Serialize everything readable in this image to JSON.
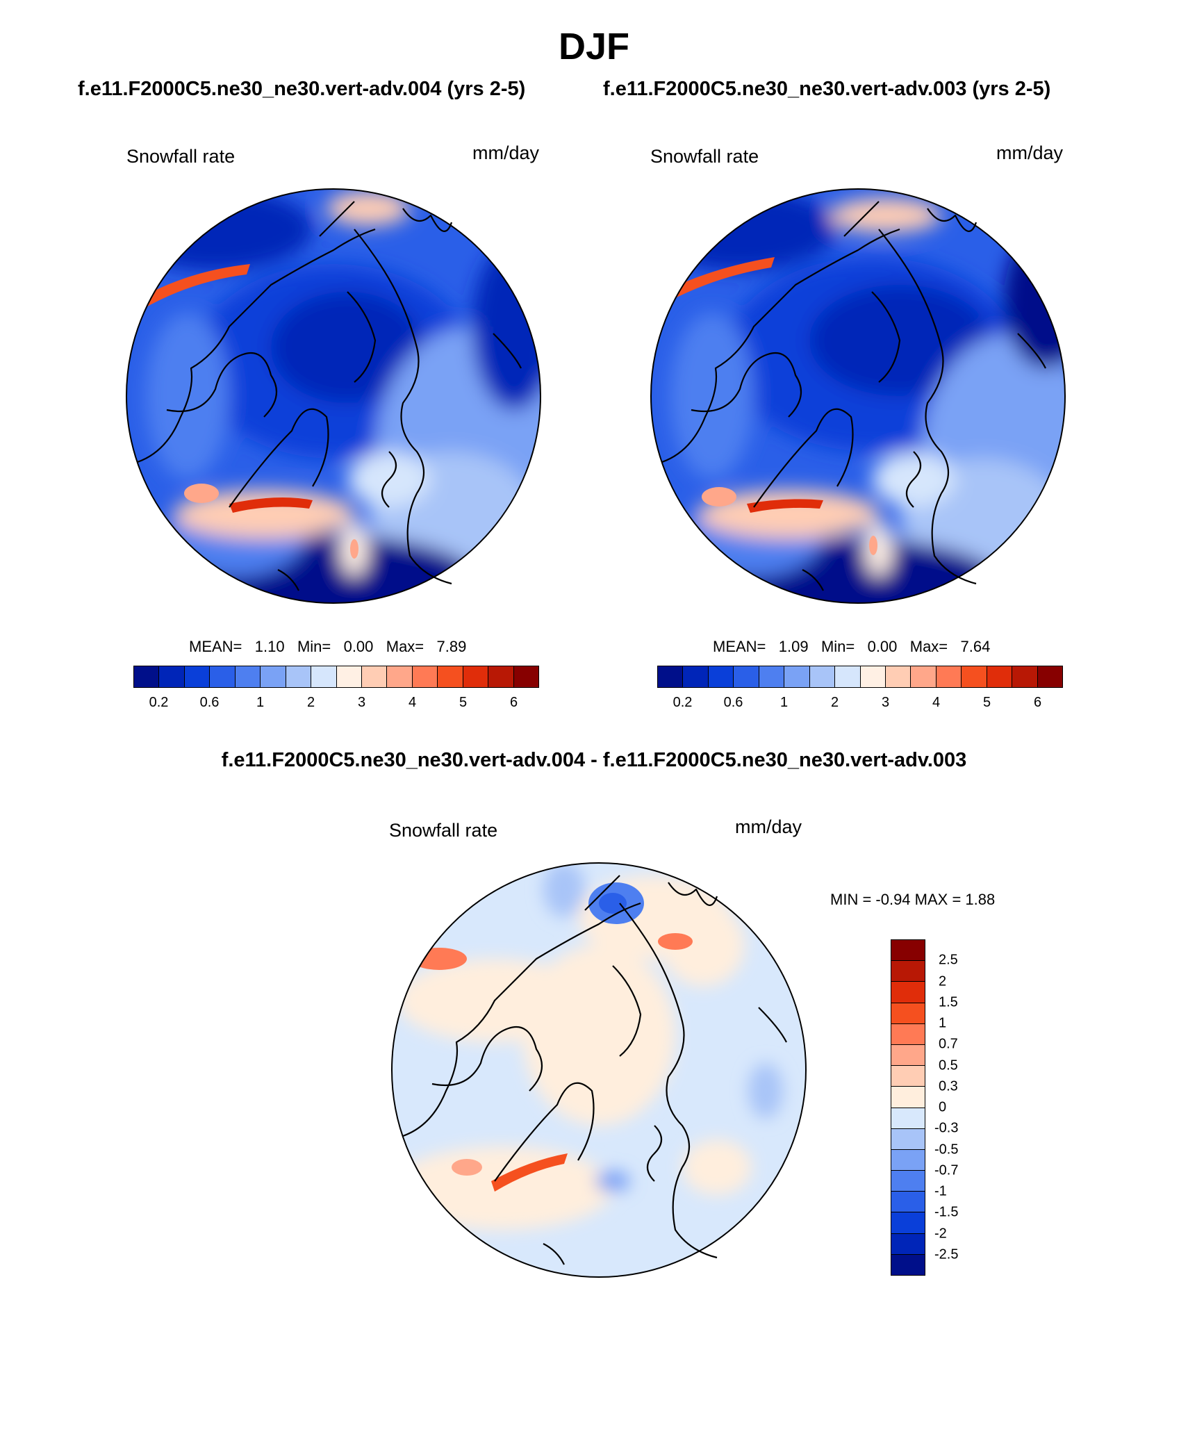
{
  "title": "DJF",
  "panels": {
    "left": {
      "case_title": "f.e11.F2000C5.ne30_ne30.vert-adv.004 (yrs 2-5)",
      "variable": "Snowfall rate",
      "units": "mm/day",
      "stats": {
        "mean_label": "MEAN=",
        "mean": "1.10",
        "min_label": "Min=",
        "min": "0.00",
        "max_label": "Max=",
        "max": "7.89"
      }
    },
    "right": {
      "case_title": "f.e11.F2000C5.ne30_ne30.vert-adv.003 (yrs 2-5)",
      "variable": "Snowfall rate",
      "units": "mm/day",
      "stats": {
        "mean_label": "MEAN=",
        "mean": "1.09",
        "min_label": "Min=",
        "min": "0.00",
        "max_label": "Max=",
        "max": "7.64"
      }
    },
    "diff": {
      "title": "f.e11.F2000C5.ne30_ne30.vert-adv.004 - f.e11.F2000C5.ne30_ne30.vert-adv.003",
      "variable": "Snowfall rate",
      "units": "mm/day",
      "minmax": "MIN =  -0.94 MAX =   1.88"
    }
  },
  "colorbar_main": {
    "colors": [
      "#000f8a",
      "#0025b8",
      "#0a3fd9",
      "#2a5fe8",
      "#4e7ff0",
      "#7aa2f5",
      "#a8c4f8",
      "#d6e6fc",
      "#fff0e4",
      "#ffcdb4",
      "#ffa78a",
      "#ff7a55",
      "#f5501f",
      "#e02d0a",
      "#b81805",
      "#870000"
    ],
    "labels": [
      "0.2",
      "0.6",
      "1",
      "2",
      "3",
      "4",
      "5",
      "6"
    ]
  },
  "colorbar_diff": {
    "colors": [
      "#870000",
      "#b81805",
      "#e02d0a",
      "#f5501f",
      "#ff7a55",
      "#ffa78a",
      "#ffcdb4",
      "#ffeedd",
      "#d8e8fc",
      "#a8c4f8",
      "#7aa2f5",
      "#4e7ff0",
      "#2a5fe8",
      "#0a3fd9",
      "#0025b8",
      "#000f8a"
    ],
    "labels": [
      "2.5",
      "2",
      "1.5",
      "1",
      "0.7",
      "0.5",
      "0.3",
      "0",
      "-0.3",
      "-0.5",
      "-0.7",
      "-1",
      "-1.5",
      "-2",
      "-2.5"
    ]
  }
}
